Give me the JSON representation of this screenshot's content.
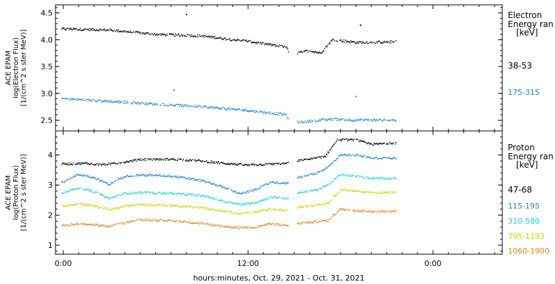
{
  "chart_data": [
    {
      "type": "scatter",
      "panel": "electron",
      "ylabel_lines": [
        "ACE EPAM",
        "log(Electron Flux)",
        "[1/(cm^2 s ster MeV)]"
      ],
      "ylim": [
        2.3,
        4.65
      ],
      "yticks": [
        2.5,
        3.0,
        3.5,
        4.0,
        4.5
      ],
      "ytick_labels": [
        "2.5",
        "3.0",
        "3.5",
        "4.0",
        "4.5"
      ],
      "legend_title": [
        "Electron",
        "Energy ran",
        "[keV]"
      ],
      "series": [
        {
          "name": "38-53",
          "color": "#000000",
          "x": [
            0.0,
            3.0,
            6.0,
            9.0,
            12.0,
            14.5,
            14.7,
            16.0,
            16.7,
            17.5,
            19.0,
            20.0,
            21.5
          ],
          "y": [
            4.2,
            4.18,
            4.1,
            4.07,
            3.97,
            3.86,
            3.72,
            3.8,
            3.75,
            4.0,
            3.95,
            3.95,
            3.96
          ]
        },
        {
          "name": "175-315",
          "color": "#1f7fd6",
          "x": [
            0.0,
            3.0,
            6.0,
            9.0,
            12.0,
            14.5,
            14.7,
            16.0,
            17.5,
            19.0,
            20.0,
            21.5
          ],
          "y": [
            2.9,
            2.85,
            2.8,
            2.75,
            2.68,
            2.6,
            2.45,
            2.48,
            2.52,
            2.5,
            2.5,
            2.5
          ]
        }
      ],
      "outliers": [
        {
          "series": "38-53",
          "x": 8.0,
          "y": 4.47
        },
        {
          "series": "38-53",
          "x": 19.3,
          "y": 4.27
        },
        {
          "series": "175-315",
          "x": 7.2,
          "y": 3.06
        },
        {
          "series": "175-315",
          "x": 19.0,
          "y": 2.94
        }
      ]
    },
    {
      "type": "scatter",
      "panel": "proton",
      "ylabel_lines": [
        "ACE EPAM",
        "log(Proton Flux)",
        "[1/(cm^2 s ster MeV)]"
      ],
      "ylim": [
        0.7,
        4.8
      ],
      "yticks": [
        1,
        2,
        3,
        4
      ],
      "ytick_labels": [
        "1",
        "2",
        "3",
        "4"
      ],
      "legend_title": [
        "Proton",
        "Energy ran",
        "[keV]"
      ],
      "series": [
        {
          "name": "47-68",
          "color": "#000000",
          "x": [
            0.0,
            1.5,
            2.5,
            3.5,
            5.0,
            7.0,
            9.0,
            10.5,
            12.0,
            14.5,
            15.2,
            16.5,
            17.0,
            17.8,
            19.0,
            20.0,
            21.5
          ],
          "y": [
            3.7,
            3.72,
            3.68,
            3.72,
            3.85,
            3.86,
            3.8,
            3.72,
            3.66,
            3.72,
            3.8,
            3.9,
            3.95,
            4.5,
            4.5,
            4.35,
            4.4
          ]
        },
        {
          "name": "115-195",
          "color": "#1f7fd6",
          "x": [
            0.0,
            1.0,
            2.0,
            3.0,
            4.0,
            5.0,
            7.0,
            9.0,
            10.5,
            11.5,
            12.5,
            13.5,
            14.5,
            15.2,
            16.5,
            17.2,
            18.0,
            19.0,
            20.0,
            21.5
          ],
          "y": [
            3.1,
            3.35,
            3.25,
            3.02,
            3.3,
            3.33,
            3.3,
            3.15,
            2.92,
            2.7,
            2.85,
            3.1,
            3.05,
            3.25,
            3.4,
            3.6,
            4.0,
            4.0,
            3.9,
            3.9
          ]
        },
        {
          "name": "310-580",
          "color": "#17d6d6",
          "x": [
            0.0,
            1.0,
            2.0,
            3.0,
            4.0,
            5.0,
            7.0,
            9.0,
            10.5,
            11.5,
            12.5,
            13.5,
            14.5,
            15.2,
            16.5,
            17.2,
            18.0,
            19.0,
            20.0,
            21.5
          ],
          "y": [
            2.75,
            2.9,
            2.78,
            2.55,
            2.72,
            2.75,
            2.72,
            2.65,
            2.45,
            2.35,
            2.42,
            2.6,
            2.55,
            2.72,
            2.85,
            3.0,
            3.35,
            3.3,
            3.22,
            3.22
          ]
        },
        {
          "name": "795-1193",
          "color": "#c9d900",
          "x": [
            0.0,
            1.0,
            2.0,
            3.0,
            4.0,
            5.0,
            7.0,
            9.0,
            10.5,
            11.5,
            12.5,
            13.5,
            14.5,
            15.2,
            16.5,
            17.2,
            18.0,
            19.0,
            20.0,
            21.5
          ],
          "y": [
            2.3,
            2.38,
            2.3,
            2.18,
            2.3,
            2.35,
            2.32,
            2.25,
            2.12,
            2.05,
            2.1,
            2.2,
            2.15,
            2.25,
            2.35,
            2.4,
            2.85,
            2.8,
            2.75,
            2.75
          ]
        },
        {
          "name": "1060-1900",
          "color": "#e8821a",
          "x": [
            0.0,
            1.0,
            2.0,
            3.0,
            4.0,
            5.0,
            7.0,
            9.0,
            10.5,
            11.5,
            12.5,
            13.5,
            14.5,
            15.2,
            16.5,
            17.2,
            18.0,
            19.0,
            20.0,
            21.5
          ],
          "y": [
            1.65,
            1.7,
            1.68,
            1.62,
            1.75,
            1.85,
            1.82,
            1.72,
            1.62,
            1.58,
            1.6,
            1.72,
            1.65,
            1.72,
            1.78,
            1.82,
            2.2,
            2.15,
            2.12,
            2.12
          ]
        }
      ]
    }
  ],
  "x_axis": {
    "label": "hours:minutes, Oct. 29, 2021 - Oct. 31, 2021",
    "xlim": [
      -0.5,
      28.5
    ],
    "tick_values": [
      0,
      12,
      24
    ],
    "tick_labels": [
      "0:00",
      "12:00",
      "0:00"
    ],
    "data_gap": [
      14.65,
      15.2
    ],
    "data_end": 21.6
  }
}
